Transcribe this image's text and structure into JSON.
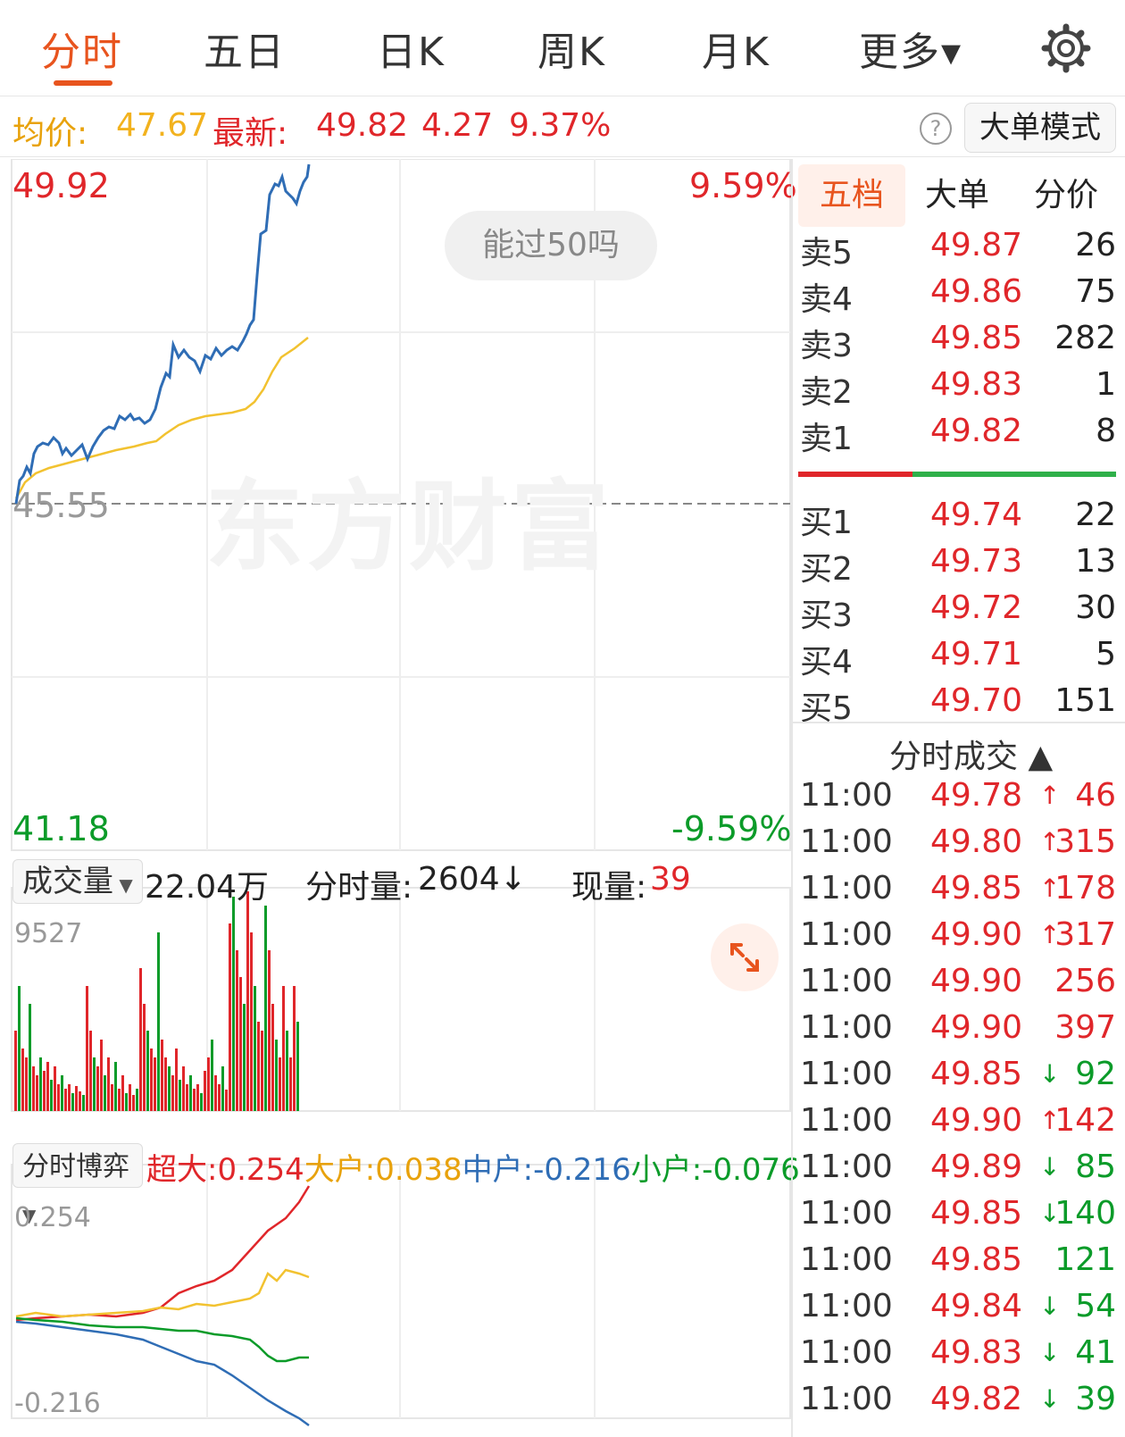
{
  "tabs": [
    {
      "label": "分时",
      "active": true
    },
    {
      "label": "五日",
      "active": false
    },
    {
      "label": "日K",
      "active": false
    },
    {
      "label": "周K",
      "active": false
    },
    {
      "label": "月K",
      "active": false
    },
    {
      "label": "更多▾",
      "active": false
    }
  ],
  "infobar": {
    "avg_label": "均价:",
    "avg_value": "47.67",
    "latest_label": "最新:",
    "latest_value": "49.82",
    "change": "4.27",
    "change_pct": "9.37%",
    "help_icon": "?",
    "big_order_mode": "大单模式"
  },
  "price_chart": {
    "high_price": "49.92",
    "high_pct": "9.59%",
    "base_price": "45.55",
    "low_price": "41.18",
    "low_pct": "-9.59%",
    "bubble": "能过50吗",
    "watermark": "东方财富",
    "colors": {
      "price_line": "#2f6db5",
      "avg_line": "#f2c230",
      "up": "#e0262a",
      "down": "#0b9b29"
    }
  },
  "volume": {
    "selector": "成交量",
    "total": "22.04万",
    "minute_label": "分时量:",
    "minute_value": "2604↓",
    "current_label": "现量:",
    "current_value": "39",
    "ymax": "9527"
  },
  "game": {
    "selector": "分时博弈",
    "super_label": "超大:",
    "super_value": "0.254",
    "large_label": "大户:",
    "large_value": "0.038",
    "mid_label": "中户:",
    "mid_value": "-0.216",
    "small_label": "小户:",
    "small_value": "-0.076",
    "ymax": "0.254",
    "ymin": "-0.216"
  },
  "panel": {
    "tabs": [
      "五档",
      "大单",
      "分价"
    ],
    "asks": [
      {
        "label": "卖5",
        "price": "49.87",
        "vol": "26"
      },
      {
        "label": "卖4",
        "price": "49.86",
        "vol": "75"
      },
      {
        "label": "卖3",
        "price": "49.85",
        "vol": "282"
      },
      {
        "label": "卖2",
        "price": "49.83",
        "vol": "1"
      },
      {
        "label": "卖1",
        "price": "49.82",
        "vol": "8"
      }
    ],
    "bids": [
      {
        "label": "买1",
        "price": "49.74",
        "vol": "22"
      },
      {
        "label": "买2",
        "price": "49.73",
        "vol": "13"
      },
      {
        "label": "买3",
        "price": "49.72",
        "vol": "30"
      },
      {
        "label": "买4",
        "price": "49.71",
        "vol": "5"
      },
      {
        "label": "买5",
        "price": "49.70",
        "vol": "151"
      }
    ],
    "trades_title": "分时成交 ▲",
    "trades": [
      {
        "time": "11:00",
        "price": "49.78",
        "arrow": "↑",
        "vol": "46",
        "dir": "up"
      },
      {
        "time": "11:00",
        "price": "49.80",
        "arrow": "↑",
        "vol": "315",
        "dir": "up"
      },
      {
        "time": "11:00",
        "price": "49.85",
        "arrow": "↑",
        "vol": "178",
        "dir": "up"
      },
      {
        "time": "11:00",
        "price": "49.90",
        "arrow": "↑",
        "vol": "317",
        "dir": "up"
      },
      {
        "time": "11:00",
        "price": "49.90",
        "arrow": "",
        "vol": "256",
        "dir": "up"
      },
      {
        "time": "11:00",
        "price": "49.90",
        "arrow": "",
        "vol": "397",
        "dir": "up"
      },
      {
        "time": "11:00",
        "price": "49.85",
        "arrow": "↓",
        "vol": "92",
        "dir": "down"
      },
      {
        "time": "11:00",
        "price": "49.90",
        "arrow": "↑",
        "vol": "142",
        "dir": "up"
      },
      {
        "time": "11:00",
        "price": "49.89",
        "arrow": "↓",
        "vol": "85",
        "dir": "down"
      },
      {
        "time": "11:00",
        "price": "49.85",
        "arrow": "↓",
        "vol": "140",
        "dir": "down"
      },
      {
        "time": "11:00",
        "price": "49.85",
        "arrow": "",
        "vol": "121",
        "dir": "down"
      },
      {
        "time": "11:00",
        "price": "49.84",
        "arrow": "↓",
        "vol": "54",
        "dir": "down"
      },
      {
        "time": "11:00",
        "price": "49.83",
        "arrow": "↓",
        "vol": "41",
        "dir": "down"
      },
      {
        "time": "11:00",
        "price": "49.82",
        "arrow": "↓",
        "vol": "39",
        "dir": "down"
      }
    ]
  }
}
